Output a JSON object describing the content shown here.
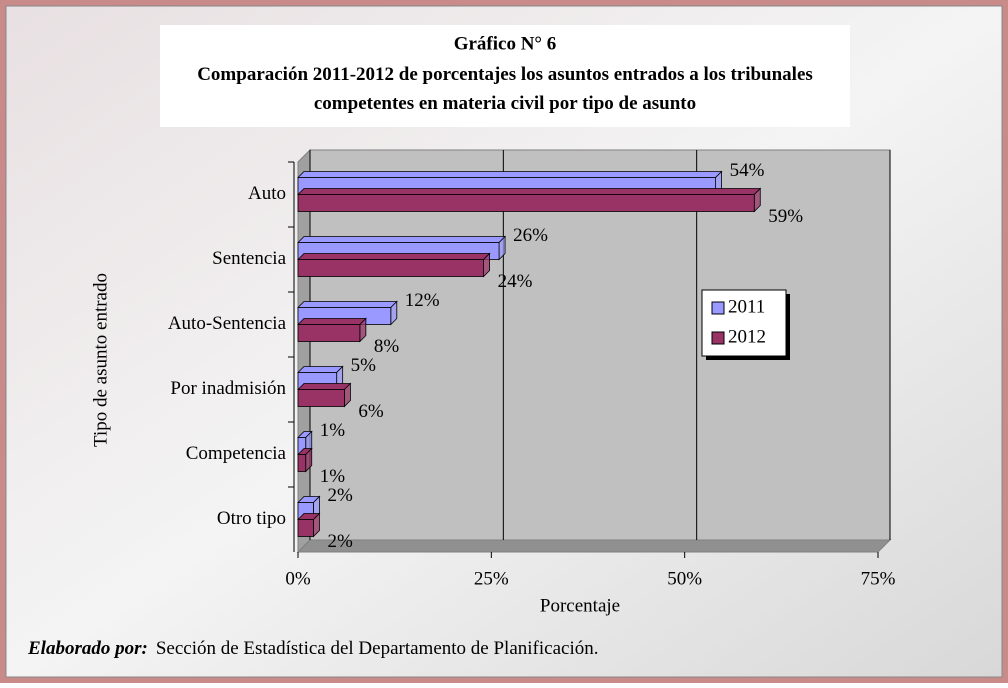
{
  "chart_data": {
    "type": "bar3d_horizontal",
    "title": "Gráfico N° 6",
    "subtitle": "Comparación 2011-2012 de porcentajes los asuntos entrados a los tribunales competentes en materia civil por tipo de asunto",
    "categories": [
      "Auto",
      "Sentencia",
      "Auto-Sentencia",
      "Por inadmisión",
      "Competencia",
      "Otro tipo"
    ],
    "series": [
      {
        "name": "2011",
        "color": "#9999ff",
        "values": [
          54,
          26,
          12,
          5,
          1,
          2
        ],
        "value_labels": [
          "54%",
          "26%",
          "12%",
          "5%",
          "1%",
          "2%"
        ]
      },
      {
        "name": "2012",
        "color": "#993366",
        "values": [
          59,
          24,
          8,
          6,
          1,
          2
        ],
        "value_labels": [
          "59%",
          "24%",
          "8%",
          "6%",
          "1%",
          "2%"
        ]
      }
    ],
    "xlabel": "Porcentaje",
    "ylabel": "Tipo de asunto entrado",
    "xlim": [
      0,
      75
    ],
    "xticks": [
      {
        "value": 0,
        "label": "0%"
      },
      {
        "value": 25,
        "label": "25%"
      },
      {
        "value": 50,
        "label": "50%"
      },
      {
        "value": 75,
        "label": "75%"
      }
    ],
    "grid": true,
    "legend": "right",
    "footer_label": "Elaborado por:",
    "footer_text": "Sección de Estadística del Departamento de Planificación."
  }
}
